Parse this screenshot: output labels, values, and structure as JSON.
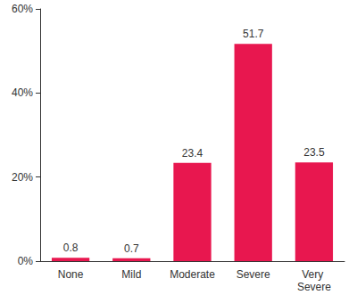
{
  "chart_data": {
    "type": "bar",
    "categories": [
      "None",
      "Mild",
      "Moderate",
      "Severe",
      "Very Severe"
    ],
    "values": [
      0.8,
      0.7,
      23.4,
      51.7,
      23.5
    ],
    "color": "#e8174f",
    "ylim": [
      0,
      60
    ],
    "yticks": [
      {
        "value": 0,
        "label": "0%"
      },
      {
        "value": 20,
        "label": "20%"
      },
      {
        "value": 40,
        "label": "40%"
      },
      {
        "value": 60,
        "label": "60%"
      }
    ],
    "grid": false,
    "data_labels": true
  }
}
